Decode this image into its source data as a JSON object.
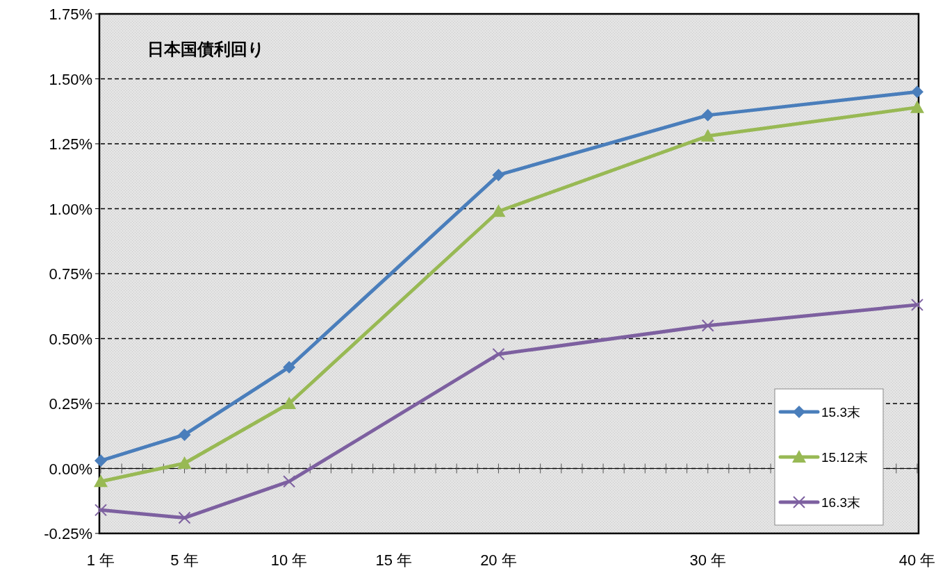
{
  "chart_data": {
    "type": "line",
    "title": "日本国債利回り",
    "x": [
      1,
      5,
      10,
      20,
      30,
      40
    ],
    "xlim": [
      1,
      40
    ],
    "xticks": [
      {
        "value": 1,
        "label": "1 年"
      },
      {
        "value": 2,
        "label": null
      },
      {
        "value": 3,
        "label": null
      },
      {
        "value": 4,
        "label": null
      },
      {
        "value": 5,
        "label": "5 年"
      },
      {
        "value": 6,
        "label": null
      },
      {
        "value": 7,
        "label": null
      },
      {
        "value": 8,
        "label": null
      },
      {
        "value": 9,
        "label": null
      },
      {
        "value": 10,
        "label": "10 年"
      },
      {
        "value": 11,
        "label": null
      },
      {
        "value": 12,
        "label": null
      },
      {
        "value": 13,
        "label": null
      },
      {
        "value": 14,
        "label": null
      },
      {
        "value": 15,
        "label": "15 年"
      },
      {
        "value": 16,
        "label": null
      },
      {
        "value": 17,
        "label": null
      },
      {
        "value": 18,
        "label": null
      },
      {
        "value": 19,
        "label": null
      },
      {
        "value": 20,
        "label": "20 年"
      },
      {
        "value": 21,
        "label": null
      },
      {
        "value": 22,
        "label": null
      },
      {
        "value": 23,
        "label": null
      },
      {
        "value": 24,
        "label": null
      },
      {
        "value": 25,
        "label": null
      },
      {
        "value": 26,
        "label": null
      },
      {
        "value": 27,
        "label": null
      },
      {
        "value": 28,
        "label": null
      },
      {
        "value": 29,
        "label": null
      },
      {
        "value": 30,
        "label": "30 年"
      },
      {
        "value": 31,
        "label": null
      },
      {
        "value": 32,
        "label": null
      },
      {
        "value": 33,
        "label": null
      },
      {
        "value": 34,
        "label": null
      },
      {
        "value": 35,
        "label": null
      },
      {
        "value": 36,
        "label": null
      },
      {
        "value": 37,
        "label": null
      },
      {
        "value": 38,
        "label": null
      },
      {
        "value": 39,
        "label": null
      },
      {
        "value": 40,
        "label": "40 年"
      }
    ],
    "ylim": [
      -0.25,
      1.75
    ],
    "yticks": [
      {
        "value": -0.25,
        "label": "-0.25%"
      },
      {
        "value": 0,
        "label": "0.00%"
      },
      {
        "value": 0.25,
        "label": "0.25%"
      },
      {
        "value": 0.5,
        "label": "0.50%"
      },
      {
        "value": 0.75,
        "label": "0.75%"
      },
      {
        "value": 1,
        "label": "1.00%"
      },
      {
        "value": 1.25,
        "label": "1.25%"
      },
      {
        "value": 1.5,
        "label": "1.50%"
      },
      {
        "value": 1.75,
        "label": "1.75%"
      }
    ],
    "grid": "y",
    "legend": "bottom right",
    "line_style": "solid",
    "series": [
      {
        "name": "15.3末",
        "color": "#4a7ebb",
        "marker": "diamond",
        "values": [
          0.03,
          0.13,
          0.39,
          1.13,
          1.36,
          1.45
        ]
      },
      {
        "name": "15.12末",
        "color": "#98b954",
        "marker": "triangle",
        "values": [
          -0.05,
          0.02,
          0.25,
          0.99,
          1.28,
          1.39
        ]
      },
      {
        "name": "16.3末",
        "color": "#7d60a0",
        "marker": "cross",
        "values": [
          -0.16,
          -0.19,
          -0.05,
          0.44,
          0.55,
          0.63
        ]
      }
    ]
  }
}
